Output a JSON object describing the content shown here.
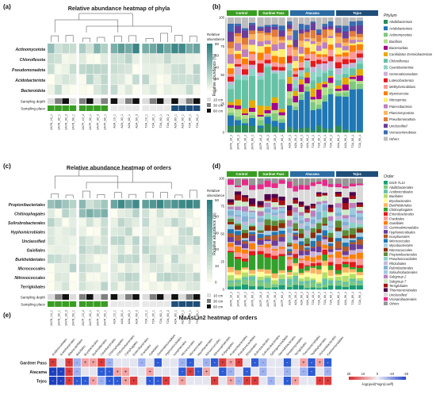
{
  "panels": {
    "a": {
      "tag": "(a)",
      "title": "Relative abundance heatmap of phyla"
    },
    "b": {
      "tag": "(b)"
    },
    "c": {
      "tag": "(c)",
      "title": "Relative abundance heatmap of orders"
    },
    "d": {
      "tag": "(d)"
    },
    "e": {
      "tag": "(e)",
      "title": "MaAsLin2 heatmap of orders"
    }
  },
  "samples": [
    "2A7K_10_1",
    "2A7K_30_1",
    "2A7K_30_2",
    "2A7K_60_1",
    "2A7P_10_2",
    "2A7P_30_1",
    "2A7P_30_2",
    "2A7P_60_1",
    "A2A_10_1",
    "A2A_30_1",
    "A2A_60_1",
    "A2A_60_2",
    "T2A_10_1",
    "T2A_30_1",
    "T2A_60_1",
    "T2A_60_2",
    "A2A_80_1",
    "A2A_90_1",
    "T2A_80_1",
    "T2A_90_1"
  ],
  "heat_a": {
    "rows": [
      "Actinomycetota",
      "Chloroflexota",
      "Pseudomonadota",
      "Acidobacteriota",
      "Bacteroidota"
    ],
    "legend_title": "Relative abundance",
    "legend_ticks": [
      "80",
      "60",
      "40",
      "20",
      "0"
    ],
    "annotation_rows": [
      "Sampling depth",
      "Sampling place"
    ],
    "depth_legend": [
      "10 cm",
      "30 cm",
      "60 cm"
    ]
  },
  "heat_c": {
    "rows": [
      "Propionibacteriales",
      "Chitinophagales",
      "Solirubrobacterales",
      "Hyphomicrobiales",
      "Unclassified",
      "Gaiellales",
      "Burkholderiales",
      "Micrococcales",
      "Nitrosococcales",
      "Terriglobales"
    ],
    "legend_title": "Relative abundance",
    "legend_ticks": [
      "50",
      "40",
      "30",
      "20",
      "10",
      "0"
    ],
    "annotation_rows": [
      "Sampling depth",
      "Sampling place"
    ],
    "depth_legend": [
      "10 cm",
      "30 cm",
      "60 cm"
    ]
  },
  "bar_groups": [
    "Control",
    "Gardner Pass",
    "Atacama",
    "Tejos"
  ],
  "bar_b": {
    "ylabel": "Relative abundance (%)",
    "yticks": [
      "100",
      "75",
      "50",
      "25",
      "0"
    ],
    "legend_title": "Phylum",
    "legend": [
      {
        "name": "Abditibacteriota",
        "color": "#2e8b57"
      },
      {
        "name": "Acidobacteriota",
        "color": "#1f77b4"
      },
      {
        "name": "Actinomycetota",
        "color": "#7fc97f"
      },
      {
        "name": "Bacillota",
        "color": "#b2df8a"
      },
      {
        "name": "Bacteroidota",
        "color": "#a6008a"
      },
      {
        "name": "Candidatus Eremiobacteriota",
        "color": "#e6ab02"
      },
      {
        "name": "Chloroflexota",
        "color": "#66c2a5"
      },
      {
        "name": "Cyanobacteriota",
        "color": "#8dd3c7"
      },
      {
        "name": "Gemmatimonadota",
        "color": "#cab2d6"
      },
      {
        "name": "Latescibacterota",
        "color": "#e31a1c"
      },
      {
        "name": "Methylomirabilota",
        "color": "#fb9a99"
      },
      {
        "name": "Myxococcota",
        "color": "#ff7f00"
      },
      {
        "name": "Nitrospirota",
        "color": "#ffed6f"
      },
      {
        "name": "Patescibacteria",
        "color": "#bc80bd"
      },
      {
        "name": "Planctomycetota",
        "color": "#fdb462"
      },
      {
        "name": "Pseudomonadota",
        "color": "#e07b39"
      },
      {
        "name": "Unclassified",
        "color": "#6a3d9a"
      },
      {
        "name": "Verrucomicrobiota",
        "color": "#386cb0"
      },
      {
        "name": "Others",
        "color": "#bdbdbd"
      }
    ]
  },
  "bar_d": {
    "ylabel": "Relative abundance (%)",
    "yticks": [
      "100",
      "75",
      "50",
      "25",
      "0"
    ],
    "legend_title": "Order",
    "legend": [
      {
        "name": "0319-7L14",
        "color": "#1b9e77"
      },
      {
        "name": "Abditibacteriales",
        "color": "#7fc97f"
      },
      {
        "name": "Acidimicrobiales",
        "color": "#66c2a5"
      },
      {
        "name": "Bacillales",
        "color": "#b3de69"
      },
      {
        "name": "Bryobacterales",
        "color": "#ffff99"
      },
      {
        "name": "Burkholderiales",
        "color": "#fdb462"
      },
      {
        "name": "Chitinophagales",
        "color": "#33a02c"
      },
      {
        "name": "Enterobacterales",
        "color": "#e31a1c"
      },
      {
        "name": "Frankiales",
        "color": "#fb9a99"
      },
      {
        "name": "Gaiellales",
        "color": "#ff7f00"
      },
      {
        "name": "Gemmatimonadales",
        "color": "#cab2d6"
      },
      {
        "name": "Hyphomicrobiales",
        "color": "#6a3d9a"
      },
      {
        "name": "Isosphaerales",
        "color": "#b15928"
      },
      {
        "name": "Micrococcales",
        "color": "#1f78b4"
      },
      {
        "name": "Mycobacteriales",
        "color": "#a6cee3"
      },
      {
        "name": "Nitrosococcales",
        "color": "#8c2d04"
      },
      {
        "name": "Propionibacteriales",
        "color": "#5e8b3a"
      },
      {
        "name": "Pseudonocardiales",
        "color": "#8dd3c7"
      },
      {
        "name": "Rhizobiales",
        "color": "#bebada"
      },
      {
        "name": "Rubrobacterales",
        "color": "#80b1d3"
      },
      {
        "name": "Solirubrobacterales",
        "color": "#9ecae1"
      },
      {
        "name": "Subgroup 2",
        "color": "#bc80bd"
      },
      {
        "name": "Subgroup 7",
        "color": "#ccebc5"
      },
      {
        "name": "Terriglobales",
        "color": "#a50f15"
      },
      {
        "name": "Thermomicrobiales",
        "color": "#4d004b"
      },
      {
        "name": "Unclassified",
        "color": "#d9d9d9"
      },
      {
        "name": "Vicinamibacterales",
        "color": "#e7298a"
      },
      {
        "name": "Others",
        "color": "#969696"
      }
    ]
  },
  "maaslin": {
    "rows": [
      "Gardner Pass",
      "Atacama",
      "Tejos"
    ],
    "columns": [
      "Acidimicrobiales",
      "Acetobacterales",
      "Blastocatellales",
      "Bacillales",
      "Bryobacterales",
      "Burkholderiales",
      "Caulobacterales",
      "Chitinophagales",
      "Chthoniobacterales",
      "Cytophagales",
      "Enterobacterales",
      "Frankiales",
      "Gaiellales",
      "Gemmatimonadales",
      "Hyphomicrobiales",
      "Isosphaerales",
      "Micrococcales",
      "Microtrichales",
      "Mycobacteriales",
      "Nitrosococcales",
      "Nitrososphaerales",
      "Polyangiales",
      "Propionibacteriales",
      "Pseudonocardiales",
      "Rhizobiales",
      "Rubrobacterales",
      "Solirubrobacterales",
      "Sphingomonadales",
      "Steroidobacterales",
      "Streptomycetales",
      "Terriglobales",
      "Thermomicrobiales",
      "Tepidisphaerales",
      "Vicinamibacterales",
      "Xanthomonadales"
    ],
    "legend_ticks": [
      "20",
      "10",
      "0",
      "-10",
      "-20"
    ],
    "legend_label": "-log(qval)*sign(coeff)",
    "plus": "+",
    "minus": "-"
  }
}
